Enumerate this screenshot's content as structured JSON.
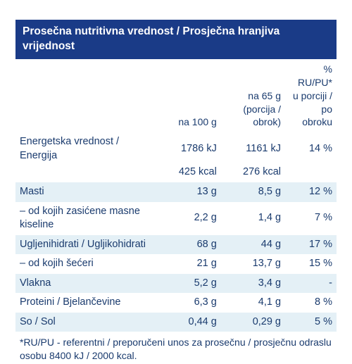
{
  "colors": {
    "header_bg": "#1a3b87",
    "header_fg": "#ffffff",
    "text": "#1a3b6e",
    "stripe": "#e4f0f6",
    "bg": "#ffffff"
  },
  "fonts": {
    "body_size_pt": 11,
    "header_size_pt": 12,
    "header_weight": 600
  },
  "title": "Prosečna nutritivna vrednost / Prosječna hranjiva vrijednost",
  "col_headers": {
    "c1": "",
    "c2": "na 100 g",
    "c3_line1": "na 65 g",
    "c3_line2": "(porcija / obrok)",
    "c4_line1": "% RU/PU*",
    "c4_line2": "u porciji /",
    "c4_line3": "po obroku"
  },
  "energy": {
    "label": "Energetska vrednost / Energija",
    "per100_kj": "1786 kJ",
    "per100_kcal": "425 kcal",
    "per65_kj": "1161 kJ",
    "per65_kcal": "276 kcal",
    "pct": "14 %"
  },
  "rows": [
    {
      "label": "Masti",
      "per100": "13 g",
      "per65": "8,5 g",
      "pct": "12 %",
      "stripe": true
    },
    {
      "label": "– od kojih zasićene masne kiseline",
      "per100": "2,2 g",
      "per65": "1,4 g",
      "pct": "7 %",
      "stripe": false
    },
    {
      "label": "Ugljenihidrati / Ugljikohidrati",
      "per100": "68 g",
      "per65": "44 g",
      "pct": "17 %",
      "stripe": true
    },
    {
      "label": "– od kojih šećeri",
      "per100": "21 g",
      "per65": "13,7 g",
      "pct": "15 %",
      "stripe": false
    },
    {
      "label": "Vlakna",
      "per100": "5,2 g",
      "per65": "3,4 g",
      "pct": "-",
      "stripe": true
    },
    {
      "label": "Proteini / Bjelančevine",
      "per100": "6,3 g",
      "per65": "4,1 g",
      "pct": "8 %",
      "stripe": false
    },
    {
      "label": "So / Sol",
      "per100": "0,44 g",
      "per65": "0,29 g",
      "pct": "5 %",
      "stripe": true
    }
  ],
  "footnote": "*RU/PU - referentni / preporučeni unos za prosečnu / prosječnu odraslu osobu 8400 kJ / 2000 kcal."
}
